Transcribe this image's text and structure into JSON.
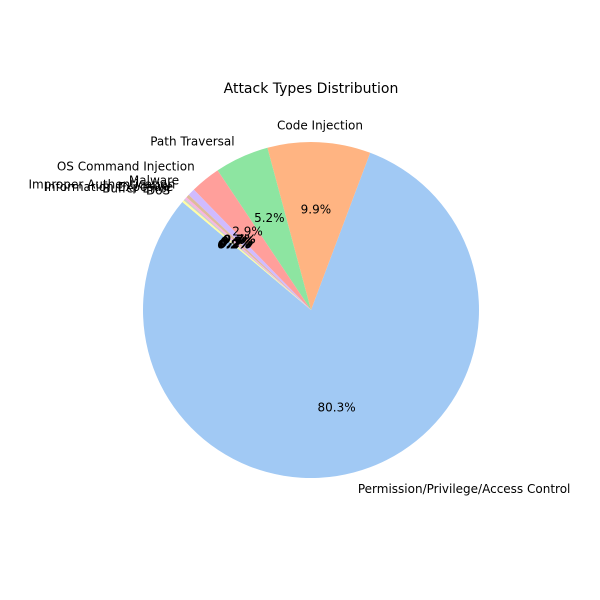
{
  "chart_data": {
    "type": "pie",
    "title": "Attack Types Distribution",
    "start_angle_deg": 140,
    "direction": "counterclockwise",
    "categories": [
      "Permission/Privilege/Access Control",
      "Code Injection",
      "Path Traversal",
      "OS Command Injection",
      "Malware",
      "Improper Authentication",
      "Information Exposure",
      "Buffer Error",
      "DoS"
    ],
    "values": [
      80.3,
      9.9,
      5.2,
      2.9,
      0.7,
      0.3,
      0.2,
      0.2,
      0.2
    ],
    "pct_labels": [
      "80.3%",
      "9.9%",
      "5.2%",
      "2.9%",
      "0.7%",
      "0.3%",
      "0.2%",
      "0.2%",
      "0.2%"
    ],
    "colors": [
      "#a1c9f4",
      "#ffb482",
      "#8de5a1",
      "#ff9f9b",
      "#d0bbff",
      "#debb9b",
      "#fab0e4",
      "#cfcfcf",
      "#fffea3"
    ]
  }
}
